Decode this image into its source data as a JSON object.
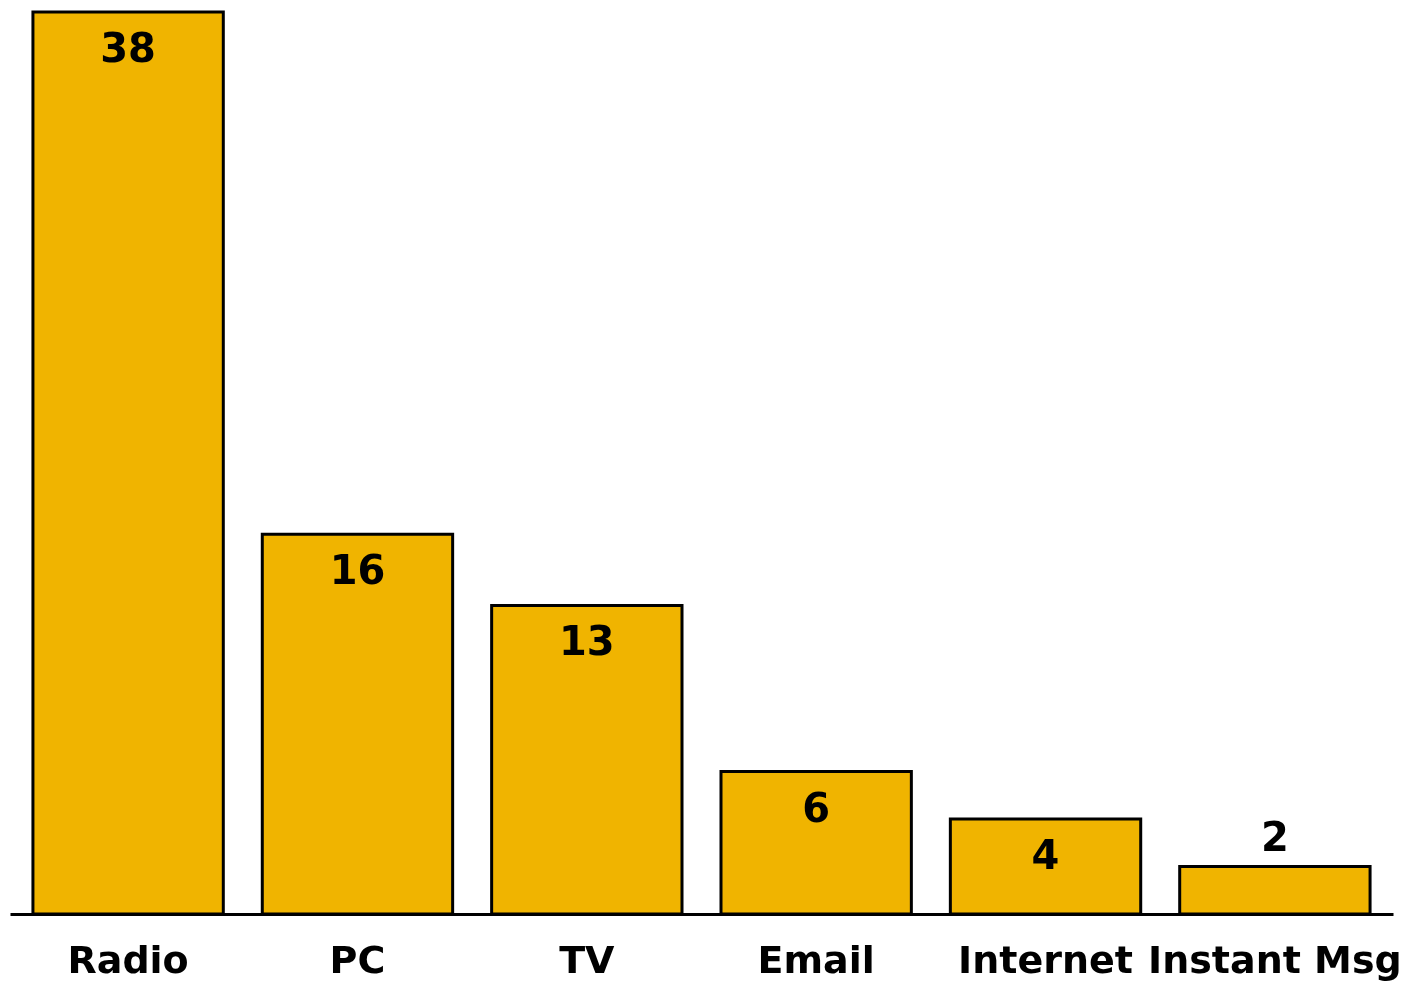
{
  "chart_data": {
    "type": "bar",
    "categories": [
      "Radio",
      "PC",
      "TV",
      "Email",
      "Internet",
      "Instant Msg"
    ],
    "values": [
      38,
      16,
      13,
      6,
      4,
      2
    ],
    "color": "#f0b400",
    "data_labels": true
  }
}
